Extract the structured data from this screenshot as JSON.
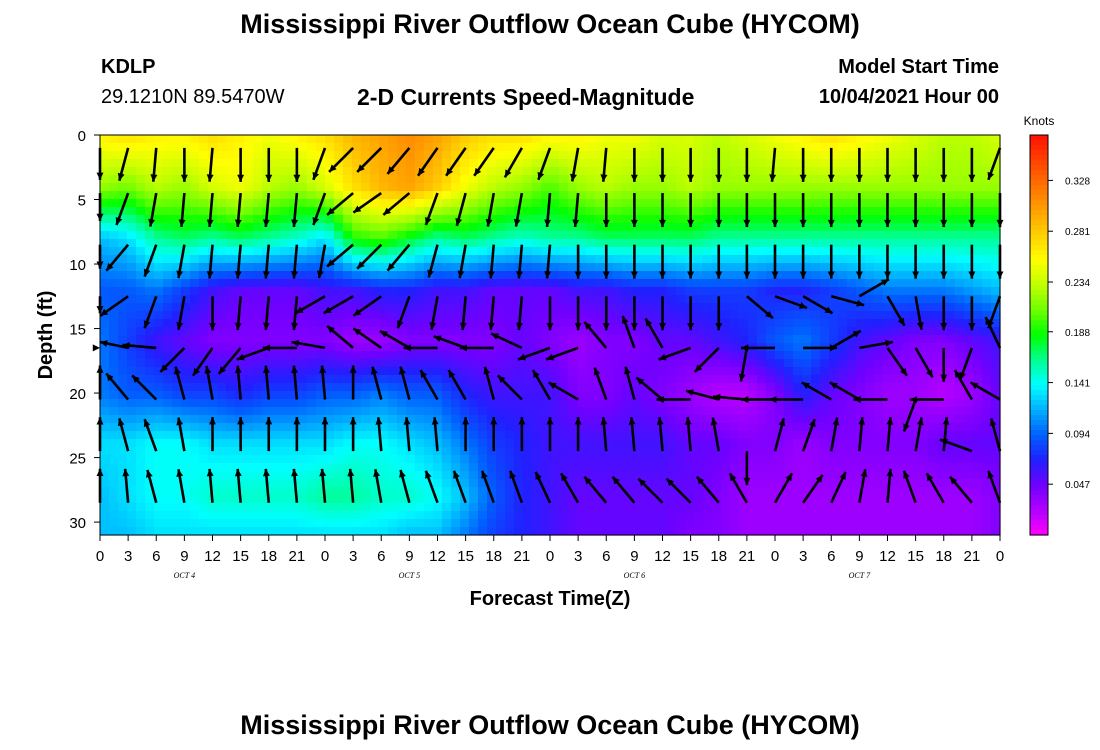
{
  "header": {
    "title": "Mississippi River Outflow Ocean Cube (HYCOM)",
    "station_id": "KDLP",
    "station_coords": "29.1210N  89.5470W",
    "subtitle": "2-D Currents Speed-Magnitude",
    "model_start_label": "Model Start Time",
    "model_start_value": "10/04/2021 Hour 00"
  },
  "footer": {
    "title": "Mississippi River Outflow Ocean Cube (HYCOM)"
  },
  "chart_data": {
    "type": "heatmap",
    "title": "2-D Currents Speed-Magnitude",
    "xlabel": "Forecast Time(Z)",
    "ylabel": "Depth (ft)",
    "x_hours": [
      0,
      3,
      6,
      9,
      12,
      15,
      18,
      21,
      24,
      27,
      30,
      33,
      36,
      39,
      42,
      45,
      48,
      51,
      54,
      57,
      60,
      63,
      66,
      69,
      72,
      75,
      78,
      81,
      84,
      87,
      90,
      93,
      96
    ],
    "x_tick_labels": [
      "0",
      "3",
      "6",
      "9",
      "12",
      "15",
      "18",
      "21",
      "0",
      "3",
      "6",
      "9",
      "12",
      "15",
      "18",
      "21",
      "0",
      "3",
      "6",
      "9",
      "12",
      "15",
      "18",
      "21",
      "0",
      "3",
      "6",
      "9",
      "12",
      "15",
      "18",
      "21",
      "0"
    ],
    "x_day_labels": [
      {
        "label": "OCT 4",
        "hour": 9
      },
      {
        "label": "OCT 5",
        "hour": 33
      },
      {
        "label": "OCT 6",
        "hour": 57
      },
      {
        "label": "OCT 7",
        "hour": 81
      }
    ],
    "y_ticks": [
      0,
      5,
      10,
      15,
      20,
      25,
      30
    ],
    "ylim": [
      0,
      31
    ],
    "depths_ft": [
      0,
      4,
      8,
      12,
      16,
      20,
      24,
      28,
      31
    ],
    "speed_knots": [
      [
        0.26,
        0.27,
        0.26,
        0.26,
        0.27,
        0.26,
        0.25,
        0.26,
        0.27,
        0.29,
        0.3,
        0.31,
        0.3,
        0.28,
        0.27,
        0.27,
        0.26,
        0.26,
        0.25,
        0.25,
        0.24,
        0.24,
        0.23,
        0.24,
        0.25,
        0.26,
        0.27,
        0.26,
        0.25,
        0.24,
        0.23,
        0.23,
        0.24
      ],
      [
        0.22,
        0.21,
        0.23,
        0.22,
        0.24,
        0.25,
        0.23,
        0.22,
        0.24,
        0.27,
        0.29,
        0.3,
        0.28,
        0.25,
        0.23,
        0.22,
        0.2,
        0.22,
        0.23,
        0.22,
        0.22,
        0.23,
        0.22,
        0.22,
        0.22,
        0.22,
        0.22,
        0.22,
        0.22,
        0.22,
        0.22,
        0.22,
        0.22
      ],
      [
        0.12,
        0.13,
        0.16,
        0.17,
        0.16,
        0.17,
        0.16,
        0.15,
        0.13,
        0.19,
        0.2,
        0.18,
        0.16,
        0.17,
        0.16,
        0.15,
        0.16,
        0.16,
        0.17,
        0.17,
        0.17,
        0.17,
        0.16,
        0.16,
        0.16,
        0.16,
        0.16,
        0.16,
        0.16,
        0.16,
        0.16,
        0.16,
        0.16
      ],
      [
        0.09,
        0.09,
        0.1,
        0.08,
        0.06,
        0.05,
        0.05,
        0.05,
        0.06,
        0.06,
        0.07,
        0.07,
        0.06,
        0.06,
        0.05,
        0.05,
        0.05,
        0.06,
        0.06,
        0.07,
        0.07,
        0.08,
        0.08,
        0.08,
        0.07,
        0.07,
        0.08,
        0.09,
        0.1,
        0.1,
        0.1,
        0.11,
        0.12
      ],
      [
        0.1,
        0.08,
        0.06,
        0.05,
        0.04,
        0.04,
        0.04,
        0.04,
        0.04,
        0.03,
        0.03,
        0.04,
        0.04,
        0.04,
        0.04,
        0.05,
        0.04,
        0.03,
        0.04,
        0.04,
        0.05,
        0.05,
        0.06,
        0.07,
        0.09,
        0.1,
        0.08,
        0.06,
        0.05,
        0.04,
        0.04,
        0.05,
        0.06
      ],
      [
        0.1,
        0.09,
        0.09,
        0.08,
        0.08,
        0.07,
        0.08,
        0.08,
        0.09,
        0.09,
        0.1,
        0.09,
        0.09,
        0.07,
        0.06,
        0.06,
        0.06,
        0.04,
        0.04,
        0.05,
        0.04,
        0.03,
        0.02,
        0.02,
        0.04,
        0.07,
        0.05,
        0.04,
        0.03,
        0.03,
        0.02,
        0.03,
        0.05
      ],
      [
        0.13,
        0.13,
        0.14,
        0.14,
        0.13,
        0.13,
        0.13,
        0.13,
        0.13,
        0.14,
        0.14,
        0.13,
        0.12,
        0.1,
        0.08,
        0.07,
        0.06,
        0.06,
        0.06,
        0.06,
        0.06,
        0.05,
        0.05,
        0.04,
        0.04,
        0.03,
        0.04,
        0.04,
        0.04,
        0.04,
        0.05,
        0.05,
        0.05
      ],
      [
        0.12,
        0.13,
        0.14,
        0.14,
        0.15,
        0.15,
        0.15,
        0.15,
        0.16,
        0.16,
        0.15,
        0.15,
        0.14,
        0.12,
        0.09,
        0.07,
        0.06,
        0.05,
        0.05,
        0.05,
        0.05,
        0.05,
        0.04,
        0.03,
        0.03,
        0.03,
        0.03,
        0.03,
        0.03,
        0.03,
        0.03,
        0.03,
        0.04
      ],
      [
        0.12,
        0.12,
        0.13,
        0.13,
        0.13,
        0.13,
        0.13,
        0.13,
        0.13,
        0.13,
        0.13,
        0.12,
        0.12,
        0.1,
        0.08,
        0.07,
        0.06,
        0.05,
        0.05,
        0.05,
        0.05,
        0.04,
        0.04,
        0.03,
        0.03,
        0.03,
        0.03,
        0.03,
        0.03,
        0.03,
        0.03,
        0.03,
        0.04
      ]
    ],
    "colorbar": {
      "label": "Knots",
      "ticks": [
        0.047,
        0.094,
        0.141,
        0.188,
        0.234,
        0.281,
        0.328
      ],
      "range": [
        0.0,
        0.37
      ],
      "colors": [
        "#ff00ff",
        "#b000ff",
        "#7000ff",
        "#2020ff",
        "#0060ff",
        "#00b0ff",
        "#00ffff",
        "#00ff90",
        "#00ff00",
        "#70ff00",
        "#c0ff00",
        "#ffff00",
        "#ffd000",
        "#ffa000",
        "#ff7000",
        "#ff4000",
        "#ff1000"
      ]
    },
    "arrow_depths_ft": [
      1,
      4.5,
      8.5,
      12.5,
      16.5,
      20.5,
      24.5,
      28.5
    ],
    "arrow_x_hours": [
      0,
      3,
      6,
      9,
      12,
      15,
      18,
      21,
      24,
      27,
      30,
      33,
      36,
      39,
      42,
      45,
      48,
      51,
      54,
      57,
      60,
      63,
      66,
      69,
      72,
      75,
      78,
      81,
      84,
      87,
      90,
      93,
      96
    ],
    "arrow_dir_deg": [
      [
        200,
        195,
        185,
        180,
        185,
        180,
        180,
        180,
        200,
        225,
        225,
        220,
        215,
        215,
        215,
        210,
        200,
        190,
        185,
        180,
        180,
        180,
        180,
        180,
        185,
        180,
        180,
        180,
        180,
        180,
        180,
        180,
        200
      ],
      [
        215,
        200,
        190,
        185,
        185,
        185,
        185,
        185,
        200,
        230,
        235,
        230,
        200,
        195,
        190,
        190,
        185,
        185,
        180,
        180,
        180,
        180,
        180,
        180,
        180,
        180,
        180,
        180,
        180,
        180,
        180,
        180,
        180
      ],
      [
        225,
        220,
        200,
        190,
        185,
        185,
        185,
        185,
        190,
        230,
        225,
        220,
        195,
        190,
        185,
        185,
        185,
        180,
        180,
        180,
        180,
        180,
        180,
        180,
        180,
        180,
        180,
        180,
        180,
        180,
        180,
        180,
        180
      ],
      [
        240,
        235,
        200,
        190,
        180,
        185,
        185,
        185,
        240,
        240,
        235,
        200,
        190,
        185,
        185,
        185,
        180,
        180,
        180,
        180,
        180,
        180,
        180,
        130,
        110,
        120,
        105,
        60,
        150,
        170,
        180,
        180,
        200
      ],
      [
        270,
        280,
        275,
        225,
        215,
        220,
        250,
        270,
        280,
        310,
        305,
        300,
        270,
        290,
        270,
        295,
        250,
        250,
        320,
        340,
        330,
        250,
        225,
        190,
        270,
        90,
        60,
        80,
        145,
        150,
        180,
        200,
        335
      ],
      [
        360,
        320,
        315,
        345,
        350,
        355,
        355,
        355,
        355,
        360,
        345,
        345,
        330,
        330,
        345,
        315,
        330,
        300,
        340,
        345,
        310,
        270,
        285,
        275,
        270,
        270,
        300,
        300,
        270,
        200,
        270,
        330,
        300
      ],
      [
        355,
        345,
        340,
        350,
        360,
        360,
        360,
        360,
        360,
        360,
        355,
        355,
        355,
        360,
        360,
        360,
        360,
        360,
        355,
        355,
        355,
        355,
        350,
        180,
        15,
        20,
        10,
        5,
        5,
        10,
        5,
        290,
        345
      ],
      [
        360,
        355,
        345,
        350,
        355,
        355,
        355,
        355,
        355,
        355,
        350,
        345,
        340,
        340,
        340,
        340,
        335,
        330,
        320,
        320,
        315,
        315,
        320,
        330,
        30,
        35,
        25,
        10,
        5,
        340,
        330,
        320,
        340
      ]
    ]
  }
}
